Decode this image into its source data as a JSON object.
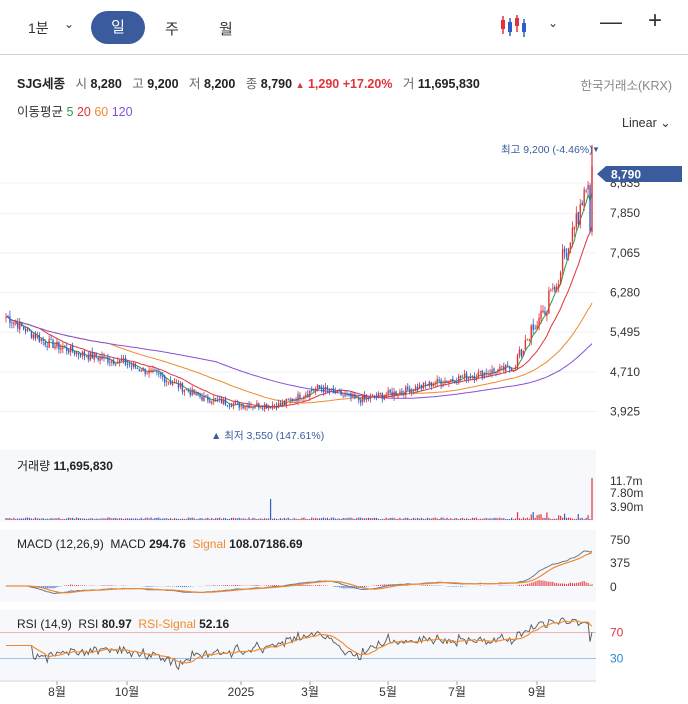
{
  "toolbar": {
    "interval": "1분",
    "tabs": [
      "일",
      "주",
      "월"
    ],
    "active_tab": "일"
  },
  "stock": {
    "name": "SJG세종",
    "open_label": "시",
    "open": "8,280",
    "high_label": "고",
    "high": "9,200",
    "low_label": "저",
    "low": "8,200",
    "close_label": "종",
    "close": "8,790",
    "change": "1,290",
    "change_pct": "+17.20%",
    "volume_label": "거",
    "volume": "11,695,830",
    "exchange": "한국거래소(KRX)"
  },
  "moving_average": {
    "label": "이동평균",
    "periods": [
      {
        "value": "5",
        "color": "#2a9d3a"
      },
      {
        "value": "20",
        "color": "#e0333a"
      },
      {
        "value": "60",
        "color": "#f08a2c"
      },
      {
        "value": "120",
        "color": "#8a4fd8"
      }
    ]
  },
  "scale_mode": "Linear",
  "annotations": {
    "max_label": "최고 9,200 (-4.46%)",
    "min_label": "최저 3,550 (147.61%)",
    "last_price": "8,790",
    "hidden_tick": "8,635"
  },
  "price_axis": [
    "7,850",
    "7,065",
    "6,280",
    "5,495",
    "4,710",
    "3,925"
  ],
  "volume_panel": {
    "title": "거래량",
    "value": "11,695,830",
    "ticks": [
      "11.7m",
      "7.80m",
      "3.90m"
    ]
  },
  "macd_panel": {
    "title": "MACD (12,26,9)",
    "macd_label": "MACD",
    "macd_value": "294.76",
    "signal_label": "Signal",
    "signal_value": "108.07186.69",
    "ticks": [
      "750",
      "375",
      "0"
    ]
  },
  "rsi_panel": {
    "title": "RSI (14,9)",
    "rsi_label": "RSI",
    "rsi_value": "80.97",
    "signal_label": "RSI-Signal",
    "signal_value": "52.16",
    "ticks": [
      "70",
      "30"
    ]
  },
  "x_axis": [
    "8월",
    "10월",
    "2025",
    "3월",
    "5월",
    "7월",
    "9월"
  ],
  "colors": {
    "up": "#e0333a",
    "down": "#2e5fc8",
    "accent": "#3a5b9c",
    "macd_line": "#6c7a8c",
    "signal_line": "#f08a2c",
    "rsi_line": "#555555"
  },
  "chart_data": [
    {
      "type": "candlestick",
      "title": "SJG세종",
      "x": [
        "2024-07",
        "2024-08",
        "2024-09",
        "2024-10",
        "2024-11",
        "2024-12",
        "2025-01",
        "2025-02",
        "2025-03",
        "2025-04",
        "2025-05",
        "2025-06",
        "2025-07",
        "2025-08",
        "2025-09",
        "2025-10"
      ],
      "close_approx": [
        5800,
        5300,
        5050,
        4900,
        4600,
        4200,
        4050,
        4050,
        4400,
        4150,
        4300,
        4500,
        4650,
        4800,
        6250,
        8790
      ],
      "ylim": [
        3550,
        9200
      ],
      "y_ticks": [
        3925,
        4710,
        5495,
        6280,
        7065,
        7850
      ],
      "max": 9200,
      "min": 3550,
      "last": 8790,
      "moving_averages": [
        5,
        20,
        60,
        120
      ]
    },
    {
      "type": "bar",
      "title": "거래량",
      "last_value": 11695830,
      "y_ticks": [
        3900000,
        7800000,
        11700000
      ]
    },
    {
      "type": "line",
      "title": "MACD (12,26,9)",
      "series": [
        {
          "name": "MACD",
          "last": 294.76
        },
        {
          "name": "Signal",
          "last": 108.07186
        }
      ],
      "y_ticks": [
        0,
        375,
        750
      ]
    },
    {
      "type": "line",
      "title": "RSI (14,9)",
      "series": [
        {
          "name": "RSI",
          "last": 80.97
        },
        {
          "name": "RSI-Signal",
          "last": 52.16
        }
      ],
      "y_ticks": [
        30,
        70
      ]
    }
  ]
}
